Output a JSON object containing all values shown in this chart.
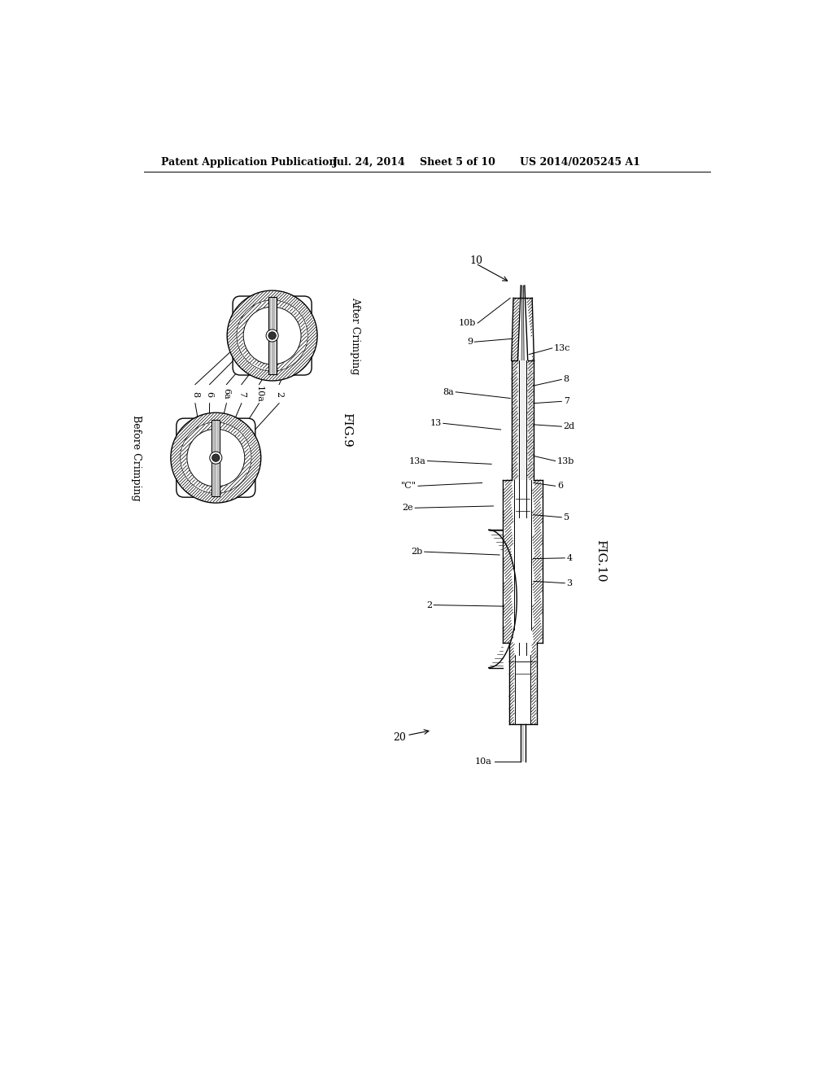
{
  "bg_color": "#ffffff",
  "line_color": "#000000",
  "header_text": "Patent Application Publication",
  "header_date": "Jul. 24, 2014",
  "header_sheet": "Sheet 5 of 10",
  "header_patent": "US 2014/0205245 A1",
  "fig9_label": "FIG.9",
  "fig10_label": "FIG.10",
  "after_crimping": "After Crimping",
  "before_crimping": "Before Crimping",
  "ref_num_10": "10",
  "ref_num_20": "20",
  "labels_fig9": [
    "8",
    "6",
    "6a",
    "7",
    "10a",
    "2"
  ],
  "labels_fig10_left": [
    "10b",
    "9",
    "8a",
    "13",
    "13a",
    "\"C\"",
    "2e",
    "2b",
    "2"
  ],
  "labels_fig10_right": [
    "13c",
    "8",
    "7",
    "2d",
    "13b",
    "6",
    "5",
    "4",
    "3"
  ],
  "ref_10a_bottom": "10a"
}
